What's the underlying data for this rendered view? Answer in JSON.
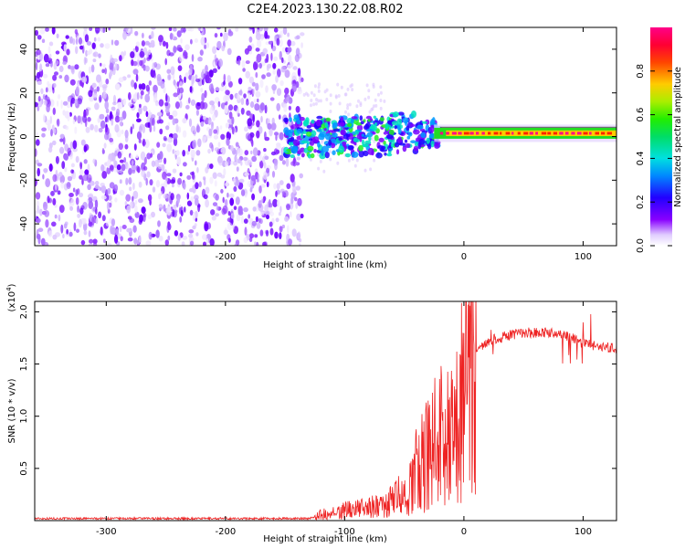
{
  "title": "C2E4.2023.130.22.08.R02",
  "chart_data": [
    {
      "type": "heatmap",
      "name": "spectrogram",
      "xlabel": "Height of straight line (km)",
      "ylabel": "Frequency (Hz)",
      "xlim": [
        -360,
        128
      ],
      "ylim": [
        -50,
        50
      ],
      "xticks": [
        -300,
        -200,
        -100,
        0,
        100
      ],
      "yticks": [
        -40,
        -20,
        0,
        20,
        40
      ],
      "noise_region_x": [
        -360,
        -135
      ],
      "signal_region_x": [
        -150,
        128
      ],
      "signal_center_hz": 1.5,
      "colorbar": {
        "label": "Normalized spectral amplitude",
        "range": [
          0.0,
          1.0
        ],
        "ticks": [
          0.0,
          0.2,
          0.4,
          0.6,
          0.8
        ],
        "tick_labels": [
          "0.0",
          "0.2",
          "0.4",
          "0.6",
          "0.8"
        ]
      }
    },
    {
      "type": "line",
      "name": "snr",
      "xlabel": "Height of straight line (km)",
      "ylabel": "SNR (10 * v/v)",
      "yscale_label": "(x10",
      "yscale_exp": "4",
      "yscale_close": ")",
      "xlim": [
        -360,
        128
      ],
      "ylim": [
        0,
        2.1
      ],
      "xticks": [
        -300,
        -200,
        -100,
        0,
        100
      ],
      "yticks": [
        0.5,
        1.0,
        1.5,
        2.0
      ],
      "ytick_labels": [
        "0.5",
        "1.0",
        "1.5",
        "2.0"
      ],
      "color": "#ee2222",
      "x": [
        -360,
        -300,
        -200,
        -130,
        -120,
        -100,
        -80,
        -60,
        -45,
        -35,
        -25,
        -15,
        -5,
        0,
        10,
        20,
        30,
        40,
        50,
        60,
        70,
        80,
        90,
        100,
        110,
        120,
        128
      ],
      "y": [
        0.02,
        0.02,
        0.02,
        0.02,
        0.06,
        0.12,
        0.15,
        0.22,
        0.45,
        0.7,
        0.95,
        1.1,
        1.25,
        1.45,
        1.62,
        1.72,
        1.75,
        1.78,
        1.8,
        1.8,
        1.8,
        1.78,
        1.75,
        1.7,
        1.67,
        1.66,
        1.65
      ]
    }
  ]
}
